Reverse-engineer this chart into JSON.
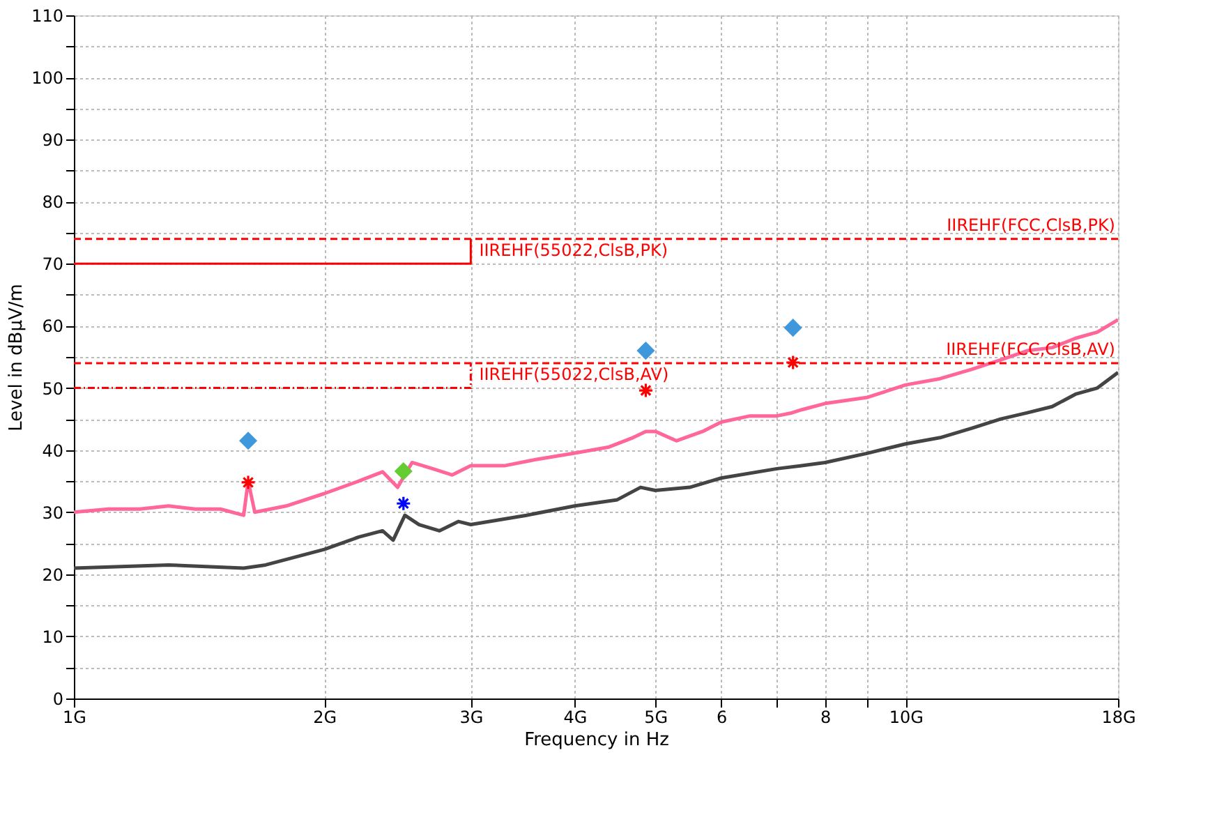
{
  "chart_data": {
    "type": "line",
    "xlabel": "Frequency in Hz",
    "ylabel": "Level in dBµV/m",
    "log": "x",
    "grid": true,
    "legend": false,
    "line_style": "solid",
    "marker": "none",
    "xlim": [
      1,
      18
    ],
    "ylim": [
      0,
      110
    ],
    "xticks": [
      {
        "value": 1,
        "label": "1G"
      },
      {
        "value": 2,
        "label": "2G"
      },
      {
        "value": 3,
        "label": "3G"
      },
      {
        "value": 4,
        "label": "4G"
      },
      {
        "value": 5,
        "label": "5G"
      },
      6,
      {
        "value": 7,
        "label": null
      },
      8,
      {
        "value": 9,
        "label": null
      },
      {
        "value": 10,
        "label": "10G"
      },
      {
        "value": 18,
        "label": "18G"
      }
    ],
    "yticks": [
      0,
      {
        "value": 5,
        "label": null
      },
      10,
      {
        "value": 15,
        "label": null
      },
      20,
      {
        "value": 25,
        "label": null
      },
      30,
      {
        "value": 35,
        "label": null
      },
      40,
      {
        "value": 45,
        "label": null
      },
      50,
      {
        "value": 55,
        "label": null
      },
      60,
      {
        "value": 65,
        "label": null
      },
      70,
      {
        "value": 75,
        "label": null
      },
      80,
      {
        "value": 85,
        "label": null
      },
      90,
      {
        "value": 95,
        "label": null
      },
      100,
      {
        "value": 105,
        "label": null
      },
      110
    ],
    "series": [
      {
        "color": "#ff6699",
        "x": [
          1,
          1.1,
          1.2,
          1.3,
          1.4,
          1.5,
          1.6,
          1.62,
          1.65,
          1.8,
          2,
          2.2,
          2.35,
          2.45,
          2.55,
          2.7,
          2.85,
          3,
          3.3,
          3.6,
          4,
          4.4,
          4.7,
          4.87,
          5,
          5.3,
          5.7,
          6,
          6.5,
          7,
          7.3,
          7.5,
          8,
          9,
          10,
          11,
          12,
          13,
          14,
          15,
          16,
          17,
          18
        ],
        "values": [
          30,
          30.5,
          30.5,
          31,
          30.5,
          30.5,
          29.5,
          35,
          30,
          31,
          33,
          35,
          36.5,
          34,
          38,
          37,
          36,
          37.5,
          37.5,
          38.5,
          39.5,
          40.5,
          42,
          43,
          43,
          41.5,
          43,
          44.5,
          45.5,
          45.5,
          46,
          46.5,
          47.5,
          48.5,
          50.5,
          51.5,
          53,
          54.5,
          56,
          56.5,
          58,
          59,
          61
        ]
      },
      {
        "color": "#444444",
        "x": [
          1,
          1.3,
          1.6,
          1.7,
          2,
          2.2,
          2.35,
          2.42,
          2.5,
          2.6,
          2.75,
          2.9,
          3,
          3.5,
          4,
          4.5,
          4.8,
          5,
          5.5,
          6,
          7,
          7.5,
          8,
          9,
          10,
          11,
          12,
          13,
          14,
          15,
          16,
          17,
          18
        ],
        "values": [
          21,
          21.5,
          21,
          21.5,
          24,
          26,
          27,
          25.5,
          29.5,
          28,
          27,
          28.5,
          28,
          29.5,
          31,
          32,
          34,
          33.5,
          34,
          35.5,
          37,
          37.5,
          38,
          39.5,
          41,
          42,
          43.5,
          45,
          46,
          47,
          49,
          50,
          52.5
        ]
      },
      {
        "name": "IIREHF(55022,ClsB,PK)",
        "color": "#ff0000",
        "line_style": "solid",
        "x": [
          1,
          3,
          3
        ],
        "values": [
          70,
          70,
          74
        ]
      },
      {
        "name": "IIREHF(FCC,ClsB,PK)",
        "color": "#ff0000",
        "line_style": "dashed",
        "x": [
          1,
          18
        ],
        "values": [
          74,
          74
        ]
      },
      {
        "name": "IIREHF(55022,ClsB,AV)",
        "color": "#ff0000",
        "line_style": "dotted",
        "x": [
          1,
          3,
          3
        ],
        "values": [
          50,
          50,
          54
        ]
      },
      {
        "name": "IIREHF(FCC,ClsB,AV)",
        "color": "#ff0000",
        "line_style": "dashed",
        "x": [
          1,
          18
        ],
        "values": [
          54,
          54
        ]
      },
      {
        "type": "scatter",
        "color": "#3f97dc",
        "marker": "diamond",
        "x": [
          1.62,
          4.87,
          7.32
        ],
        "values": [
          41.5,
          56,
          59.7
        ]
      },
      {
        "type": "scatter",
        "color": "#ff0000",
        "marker": "cross",
        "x": [
          1.62,
          4.87,
          7.32
        ],
        "values": [
          34.8,
          49.6,
          54.1
        ]
      },
      {
        "type": "scatter",
        "color": "#66cc33",
        "marker": "diamond",
        "x": [
          2.49
        ],
        "values": [
          36.6
        ]
      },
      {
        "type": "scatter",
        "color": "#0000ff",
        "marker": "cross",
        "x": [
          2.49
        ],
        "values": [
          31.4
        ]
      }
    ]
  }
}
